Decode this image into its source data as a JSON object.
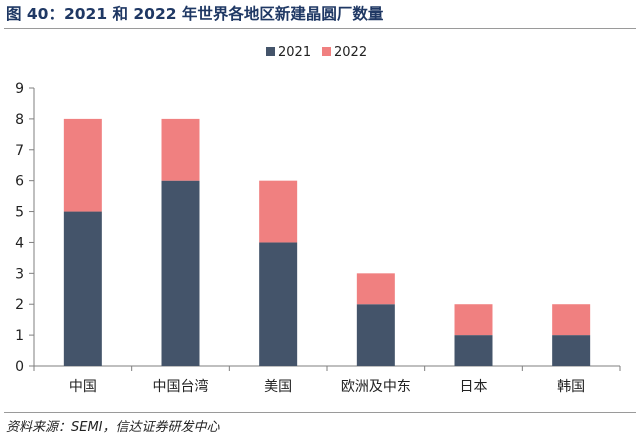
{
  "figure": {
    "title": "图 40：2021 和 2022 年世界各地区新建晶圆厂数量",
    "source": "资料来源：SEMI，信达证券研发中心"
  },
  "colors": {
    "series_2021": "#44546a",
    "series_2022": "#f08080",
    "axis": "#7f7f7f",
    "title": "#1f3864"
  },
  "chart_data": {
    "type": "bar",
    "stacked": true,
    "categories": [
      "中国",
      "中国台湾",
      "美国",
      "欧洲及中东",
      "日本",
      "韩国"
    ],
    "series": [
      {
        "name": "2021",
        "values": [
          5,
          6,
          4,
          2,
          1,
          1
        ]
      },
      {
        "name": "2022",
        "values": [
          3,
          2,
          2,
          1,
          1,
          1
        ]
      }
    ],
    "ylim": [
      0,
      9
    ],
    "yticks": [
      0,
      1,
      2,
      3,
      4,
      5,
      6,
      7,
      8,
      9
    ],
    "xlabel": "",
    "ylabel": "",
    "grid": false,
    "legend": "top-center"
  }
}
